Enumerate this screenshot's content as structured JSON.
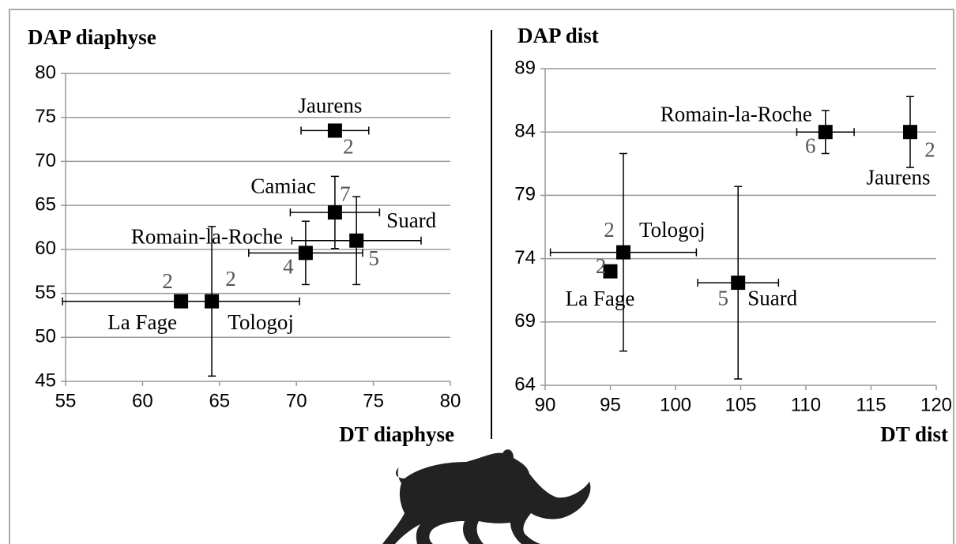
{
  "chart_data": [
    {
      "type": "scatter",
      "title": "DAP diaphyse",
      "x_label": "DT diaphyse",
      "xlim": [
        55,
        80
      ],
      "xticks": [
        55,
        60,
        65,
        70,
        75,
        80
      ],
      "ylim": [
        45,
        80
      ],
      "yticks": [
        45,
        50,
        55,
        60,
        65,
        70,
        75,
        80
      ],
      "grid": true,
      "color": "#000000",
      "series": [
        {
          "name": "Jaurens",
          "x": [
            72.5
          ],
          "values": [
            73.5
          ],
          "xerr": [
            2.2
          ],
          "yerr": [
            null
          ],
          "n": 2
        },
        {
          "name": "Camiac",
          "x": [
            72.5
          ],
          "values": [
            64.2
          ],
          "xerr": [
            2.9
          ],
          "yerr": [
            4.1
          ],
          "n": 7
        },
        {
          "name": "Suard",
          "x": [
            73.9
          ],
          "values": [
            61
          ],
          "xerr": [
            4.2
          ],
          "yerr": [
            5
          ],
          "n": 5
        },
        {
          "name": "Romain-la-Roche",
          "x": [
            70.6
          ],
          "values": [
            59.6
          ],
          "xerr": [
            3.7
          ],
          "yerr": [
            3.6
          ],
          "n": 4
        },
        {
          "name": "La Fage",
          "x": [
            62.5
          ],
          "values": [
            54.1
          ],
          "xerr": [
            7.7
          ],
          "yerr": [
            null
          ],
          "n": 2
        },
        {
          "name": "Tologoj",
          "x": [
            64.5
          ],
          "values": [
            54.1
          ],
          "xerr": [
            null
          ],
          "yerr": [
            8.5
          ],
          "n": 2
        }
      ]
    },
    {
      "type": "scatter",
      "title": "DAP dist",
      "x_label": "DT dist",
      "xlim": [
        90,
        120
      ],
      "xticks": [
        90,
        95,
        100,
        105,
        110,
        115,
        120
      ],
      "ylim": [
        64,
        89
      ],
      "yticks": [
        64,
        69,
        74,
        79,
        84,
        89
      ],
      "grid": true,
      "color": "#000000",
      "series": [
        {
          "name": "Romain-la-Roche",
          "x": [
            111.5
          ],
          "values": [
            84
          ],
          "xerr": [
            2.2
          ],
          "yerr": [
            1.7
          ],
          "n": 6
        },
        {
          "name": "Jaurens",
          "x": [
            118
          ],
          "values": [
            84
          ],
          "xerr": [
            null
          ],
          "yerr": [
            2.8
          ],
          "n": 2
        },
        {
          "name": "Tologoj",
          "x": [
            96
          ],
          "values": [
            74.5
          ],
          "xerr": [
            5.6
          ],
          "yerr": [
            7.8
          ],
          "n": 2
        },
        {
          "name": "La Fage",
          "x": [
            95
          ],
          "values": [
            73
          ],
          "xerr": [
            null
          ],
          "yerr": [
            0.5
          ],
          "n": 2
        },
        {
          "name": "Suard",
          "x": [
            104.8
          ],
          "values": [
            72.1
          ],
          "xerr": [
            3.1
          ],
          "yerr": [
            7.6
          ],
          "n": 5
        }
      ]
    }
  ]
}
